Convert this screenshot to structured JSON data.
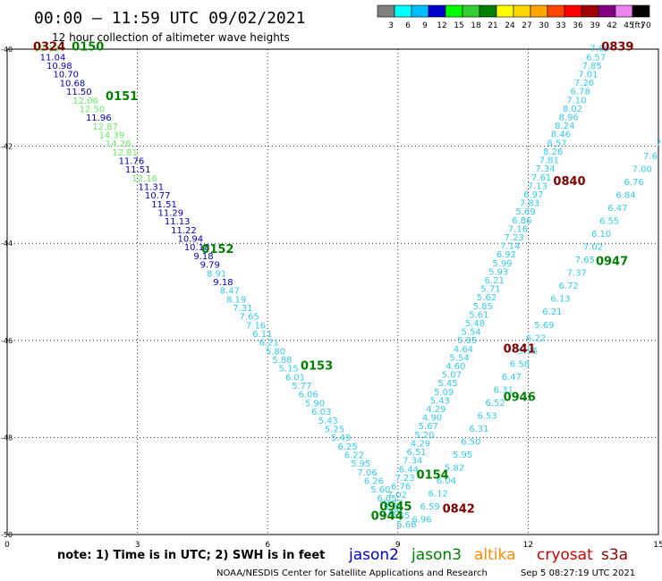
{
  "header": {
    "title": "00:00 – 11:59 UTC 09/02/2021",
    "subtitle": "12 hour collection of altimeter wave heights"
  },
  "legend": {
    "labels": [
      "3",
      "6",
      "9",
      "12",
      "15",
      "18",
      "21",
      "24",
      "27",
      "30",
      "33",
      "36",
      "39",
      "42",
      "45",
      "70"
    ],
    "unit": "(ft)",
    "colors": [
      "#808080",
      "#00ffff",
      "#00bfff",
      "#0000cd",
      "#00ff00",
      "#32cd32",
      "#008000",
      "#ffff00",
      "#ffd700",
      "#ffa500",
      "#ff4500",
      "#ff0000",
      "#a00000",
      "#800080",
      "#ee82ee",
      "#000000"
    ]
  },
  "footer": {
    "note": "note: 1) Time is in UTC; 2) SWH is in feet",
    "satellites": [
      {
        "name": "jason2",
        "color": "#0000cc"
      },
      {
        "name": "jason3",
        "color": "#008000"
      },
      {
        "name": "altika",
        "color": "#ff8c00"
      },
      {
        "name": "cryosat",
        "color": "#cc0000"
      },
      {
        "name": "s3a",
        "color": "#8b0000"
      }
    ],
    "credit": "NOAA/NESDIS Center for Satellite Applications and Research",
    "timestamp": "Sep  5 08:27:19 UTC 2021"
  },
  "chart_data": {
    "type": "scatter",
    "xlim": [
      0,
      15
    ],
    "ylim": [
      -50,
      -40
    ],
    "x_ticks": [
      "0",
      "3",
      "6",
      "9",
      "12",
      "15"
    ],
    "y_ticks": [
      "-40",
      "-42",
      "-44",
      "-46",
      "-48",
      "-50"
    ],
    "grid": true,
    "colors": {
      "light": "#33ccee",
      "green": "#66ee66",
      "blue": "#0000bb",
      "darkgreen": "#008000",
      "darkred": "#800000"
    },
    "time_labels": [
      {
        "text": "0150",
        "x": 1.86,
        "y": -40.03,
        "color": "darkgreen"
      },
      {
        "text": "0324",
        "x": 0.97,
        "y": -40.03,
        "color": "darkred"
      },
      {
        "text": "0151",
        "x": 2.64,
        "y": -41.05,
        "color": "darkgreen"
      },
      {
        "text": "0152",
        "x": 4.85,
        "y": -44.2,
        "color": "darkgreen"
      },
      {
        "text": "0153",
        "x": 7.13,
        "y": -46.6,
        "color": "darkgreen"
      },
      {
        "text": "0154",
        "x": 9.8,
        "y": -48.85,
        "color": "darkgreen"
      },
      {
        "text": "0944",
        "x": 8.75,
        "y": -49.7,
        "color": "darkgreen"
      },
      {
        "text": "0945",
        "x": 8.95,
        "y": -49.5,
        "color": "darkgreen"
      },
      {
        "text": "0946",
        "x": 11.8,
        "y": -47.25,
        "color": "darkgreen"
      },
      {
        "text": "0947",
        "x": 13.93,
        "y": -44.45,
        "color": "darkgreen"
      },
      {
        "text": "0842",
        "x": 10.4,
        "y": -49.55,
        "color": "darkred"
      },
      {
        "text": "0841",
        "x": 11.8,
        "y": -46.25,
        "color": "darkred"
      },
      {
        "text": "0840",
        "x": 12.95,
        "y": -42.8,
        "color": "darkred"
      },
      {
        "text": "0839",
        "x": 14.06,
        "y": -40.03,
        "color": "darkred"
      }
    ],
    "tracks": [
      {
        "name": "track-1",
        "x_start": 0.9,
        "y_start": -40.05,
        "x_end": 9.2,
        "y_end": -49.85,
        "values": [
          "10.18",
          "11.04",
          "10.98",
          "10.70",
          "10.68",
          "11.50",
          "12.06",
          "12.50",
          "11.96",
          "12.87",
          "14.39",
          "14.26",
          "12.81",
          "11.76",
          "11.51",
          "12.16",
          "11.31",
          "10.77",
          "11.51",
          "11.29",
          "11.13",
          "11.22",
          "10.94",
          "10.18",
          "9.18",
          "9.79",
          "8.91",
          "9.18",
          "8.47",
          "8.19",
          "7.31",
          "7.65",
          "7.16",
          "6.11",
          "6.21",
          "5.80",
          "5.88",
          "5.15",
          "6.01",
          "5.77",
          "6.06",
          "5.90",
          "6.03",
          "5.43",
          "5.25",
          "5.49",
          "6.25",
          "6.22",
          "5.95",
          "7.06",
          "6.26",
          "5.60",
          "6.05",
          "5.84",
          "5.45",
          "5.68"
        ],
        "colors": [
          "green",
          "blue",
          "blue",
          "blue",
          "blue",
          "blue",
          "green",
          "green",
          "blue",
          "green",
          "green",
          "green",
          "green",
          "blue",
          "blue",
          "green",
          "blue",
          "blue",
          "blue",
          "blue",
          "blue",
          "blue",
          "blue",
          "blue",
          "blue",
          "blue",
          "light",
          "blue",
          "light",
          "light",
          "light",
          "light",
          "light",
          "light",
          "light",
          "light",
          "light",
          "light",
          "light",
          "light",
          "light",
          "light",
          "light",
          "light",
          "light",
          "light",
          "light",
          "light",
          "light",
          "light",
          "light",
          "light",
          "light",
          "light",
          "light",
          "light"
        ]
      },
      {
        "name": "track-2",
        "x_start": 8.8,
        "y_start": -49.6,
        "x_end": 13.65,
        "y_end": -40.05,
        "values": [
          "6.86",
          "5.77",
          "7.02",
          "6.76",
          "7.23",
          "6.44",
          "7.34",
          "6.51",
          "4.29",
          "5.20",
          "5.67",
          "4.90",
          "4.29",
          "5.43",
          "5.09",
          "5.45",
          "5.07",
          "4.60",
          "5.54",
          "4.64",
          "5.05",
          "5.54",
          "5.48",
          "5.61",
          "5.85",
          "5.62",
          "5.71",
          "6.21",
          "5.93",
          "5.99",
          "6.92",
          "7.14",
          "7.23",
          "7.16",
          "6.86",
          "5.69",
          "7.83",
          "6.97",
          "7.13",
          "7.61",
          "7.34",
          "7.81",
          "8.26",
          "8.57",
          "8.46",
          "8.24",
          "8.96",
          "8.02",
          "7.10",
          "6.78",
          "7.26",
          "7.01",
          "7.85",
          "6.57",
          "7.69"
        ],
        "colors": [
          "light",
          "light",
          "light",
          "light",
          "light",
          "light",
          "light",
          "light",
          "light",
          "light",
          "light",
          "light",
          "light",
          "light",
          "light",
          "light",
          "light",
          "light",
          "light",
          "light",
          "light",
          "light",
          "light",
          "light",
          "light",
          "light",
          "light",
          "light",
          "light",
          "light",
          "light",
          "light",
          "light",
          "light",
          "light",
          "light",
          "light",
          "light",
          "light",
          "light",
          "light",
          "light",
          "light",
          "light",
          "light",
          "light",
          "light",
          "light",
          "light",
          "light",
          "light",
          "light",
          "light",
          "light",
          "light"
        ]
      },
      {
        "name": "track-3",
        "x_start": 9.55,
        "y_start": -49.75,
        "x_end": 15.0,
        "y_end": -42.0,
        "values": [
          "6.96",
          "6.59",
          "6.12",
          "6.04",
          "5.82",
          "5.95",
          "6.50",
          "6.31",
          "6.53",
          "6.52",
          "6.31",
          "6.47",
          "6.58",
          "5.95",
          "6.22",
          "5.69",
          "6.21",
          "6.13",
          "6.72",
          "7.37",
          "7.65",
          "7.02",
          "6.10",
          "6.55",
          "6.47",
          "6.84",
          "6.76",
          "7.00",
          "7.6",
          "7"
        ],
        "colors": [
          "light",
          "light",
          "light",
          "light",
          "light",
          "light",
          "light",
          "light",
          "light",
          "light",
          "light",
          "light",
          "light",
          "light",
          "light",
          "light",
          "light",
          "light",
          "light",
          "light",
          "light",
          "light",
          "light",
          "light",
          "light",
          "light",
          "light",
          "light",
          "light",
          "light"
        ]
      }
    ]
  }
}
